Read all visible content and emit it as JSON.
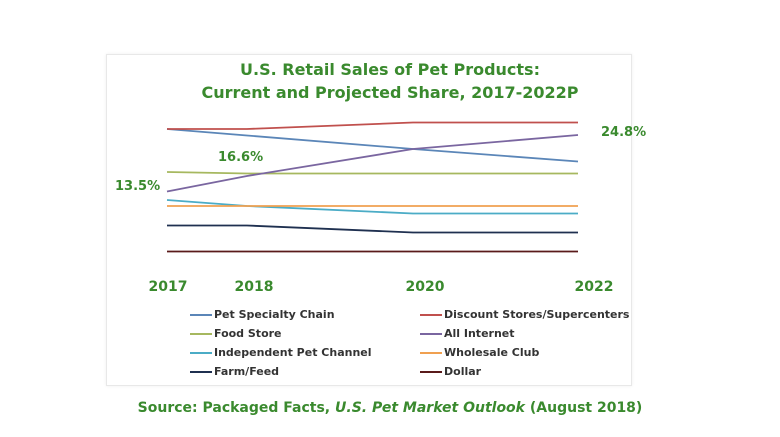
{
  "chart_data": {
    "type": "line",
    "title": "U.S. Retail Sales of Pet Products:",
    "subtitle": "Current and Projected Share, 2017-2022P",
    "categories": [
      "2017",
      "2018",
      "2020",
      "2022"
    ],
    "xlabel": "",
    "ylabel": "",
    "ylim": [
      0,
      30
    ],
    "grid": false,
    "legend_position": "bottom",
    "series": [
      {
        "name": "Pet Specialty Chain",
        "color": "#5b86b8",
        "values": [
          26.0,
          24.7,
          22.0,
          19.5
        ]
      },
      {
        "name": "Discount Stores/Supercenters",
        "color": "#c0504d",
        "values": [
          26.0,
          26.0,
          27.3,
          27.3
        ]
      },
      {
        "name": "Food Store",
        "color": "#a6b85f",
        "values": [
          17.4,
          17.1,
          17.1,
          17.1
        ]
      },
      {
        "name": "All Internet",
        "color": "#7a66a0",
        "values": [
          13.5,
          16.6,
          22.0,
          24.8
        ]
      },
      {
        "name": "Independent Pet Channel",
        "color": "#4bacc6",
        "values": [
          11.8,
          10.6,
          9.1,
          9.1
        ]
      },
      {
        "name": "Wholesale Club",
        "color": "#f0a050",
        "values": [
          10.6,
          10.6,
          10.6,
          10.6
        ]
      },
      {
        "name": "Farm/Feed",
        "color": "#1f3050",
        "values": [
          6.7,
          6.7,
          5.3,
          5.3
        ]
      },
      {
        "name": "Dollar",
        "color": "#5a1a1a",
        "values": [
          1.5,
          1.5,
          1.5,
          1.5
        ]
      }
    ],
    "annotations": [
      "13.5%",
      "16.6%",
      "24.8%"
    ]
  },
  "source": {
    "prefix": "Source: Packaged Facts, ",
    "publication": "U.S. Pet Market Outlook",
    "date": " (August 2018)"
  }
}
